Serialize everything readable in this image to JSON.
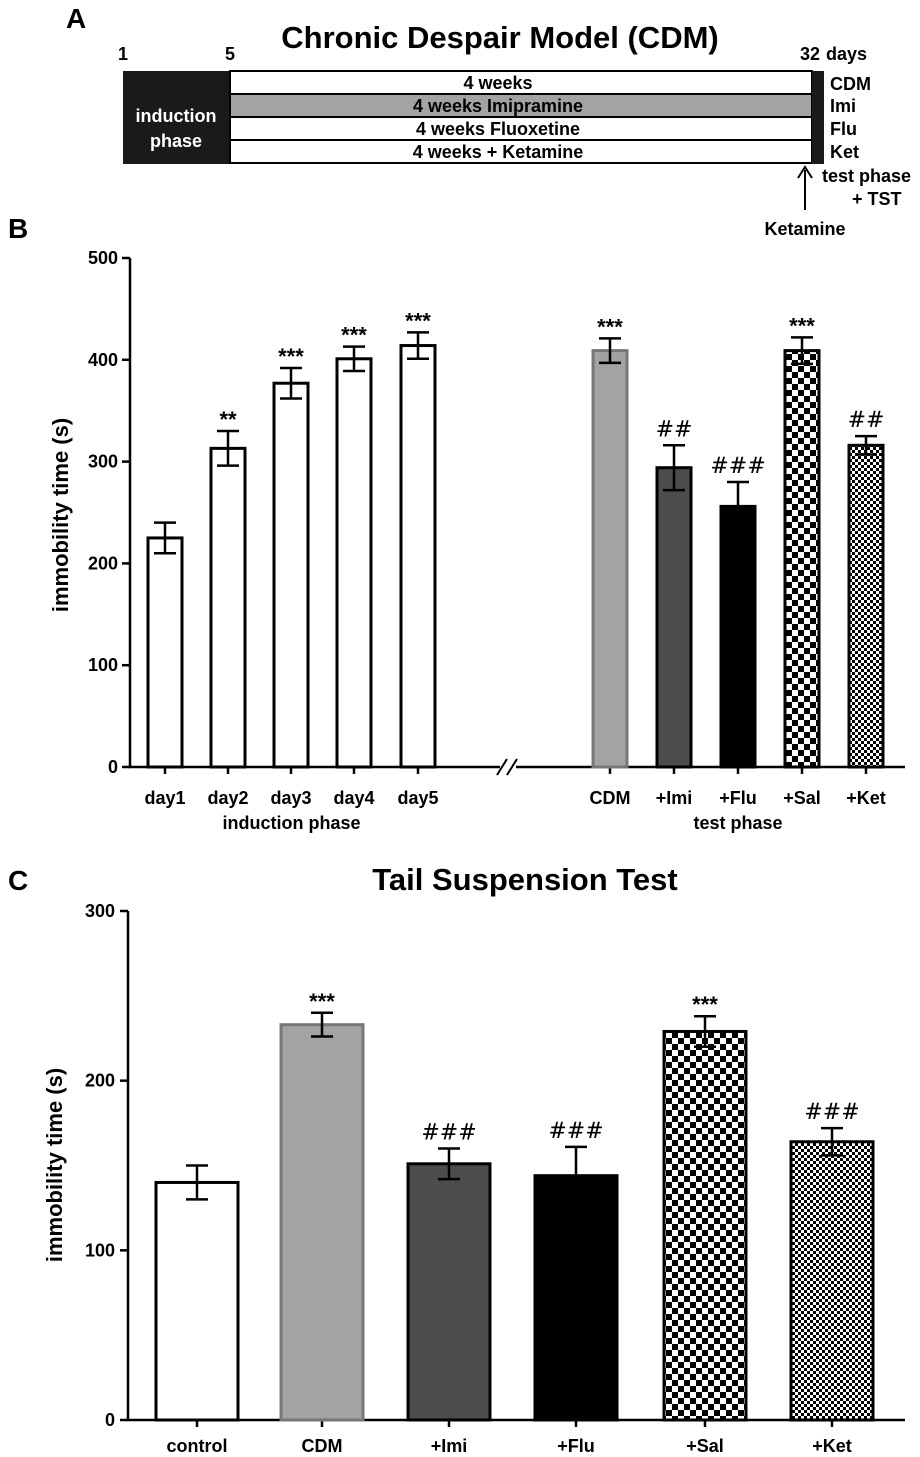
{
  "panel_a": {
    "letter": "A",
    "title": "Chronic Despair Model (CDM)",
    "day_ticks": [
      "1",
      "5",
      "32"
    ],
    "days_label": "days",
    "induction_label_line1": "induction",
    "induction_label_line2": "phase",
    "rows": [
      {
        "label": "4 weeks",
        "group": "CDM",
        "fill": "#ffffff"
      },
      {
        "label": "4 weeks Imipramine",
        "group": "Imi",
        "fill": "#a3a3a3"
      },
      {
        "label": "4 weeks Fluoxetine",
        "group": "Flu",
        "fill": "#ffffff"
      },
      {
        "label": "4 weeks + Ketamine",
        "group": "Ket",
        "fill": "#ffffff"
      }
    ],
    "test_phase_line1": "test phase",
    "test_phase_line2": "+ TST",
    "ketamine_arrow_label": "Ketamine"
  },
  "chart_data": [
    {
      "type": "bar",
      "panel": "B",
      "ylabel": "immobility time (s)",
      "ylim": [
        0,
        500
      ],
      "yticks": [
        0,
        100,
        200,
        300,
        400,
        500
      ],
      "axis_break": true,
      "groups": [
        {
          "label": "induction phase",
          "bars": [
            {
              "category": "day1",
              "value": 225,
              "error": 15,
              "sig": "",
              "fill": "white"
            },
            {
              "category": "day2",
              "value": 313,
              "error": 17,
              "sig": "**",
              "fill": "white"
            },
            {
              "category": "day3",
              "value": 377,
              "error": 15,
              "sig": "***",
              "fill": "white"
            },
            {
              "category": "day4",
              "value": 401,
              "error": 12,
              "sig": "***",
              "fill": "white"
            },
            {
              "category": "day5",
              "value": 414,
              "error": 13,
              "sig": "***",
              "fill": "white"
            }
          ]
        },
        {
          "label": "test phase",
          "bars": [
            {
              "category": "CDM",
              "value": 409,
              "error": 12,
              "sig": "***",
              "fill": "lightgray"
            },
            {
              "category": "+Imi",
              "value": 294,
              "error": 22,
              "sig": "##",
              "fill": "darkgray"
            },
            {
              "category": "+Flu",
              "value": 256,
              "error": 24,
              "sig": "###",
              "fill": "black"
            },
            {
              "category": "+Sal",
              "value": 409,
              "error": 13,
              "sig": "***",
              "fill": "checker-large"
            },
            {
              "category": "+Ket",
              "value": 316,
              "error": 9,
              "sig": "##",
              "fill": "checker-small"
            }
          ]
        }
      ]
    },
    {
      "type": "bar",
      "panel": "C",
      "title": "Tail Suspension Test",
      "ylabel": "immobility time (s)",
      "ylim": [
        0,
        300
      ],
      "yticks": [
        0,
        100,
        200,
        300
      ],
      "bars": [
        {
          "category": "control",
          "value": 140,
          "error": 10,
          "sig": "",
          "fill": "white"
        },
        {
          "category": "CDM",
          "value": 233,
          "error": 7,
          "sig": "***",
          "fill": "lightgray"
        },
        {
          "category": "+Imi",
          "value": 151,
          "error": 9,
          "sig": "###",
          "fill": "darkgray"
        },
        {
          "category": "+Flu",
          "value": 144,
          "error": 17,
          "sig": "###",
          "fill": "black"
        },
        {
          "category": "+Sal",
          "value": 229,
          "error": 9,
          "sig": "***",
          "fill": "checker-large"
        },
        {
          "category": "+Ket",
          "value": 164,
          "error": 8,
          "sig": "###",
          "fill": "checker-small"
        }
      ]
    }
  ],
  "colors": {
    "lightgray": "#a3a3a3",
    "darkgray": "#4d4d4d",
    "black": "#000000",
    "white": "#ffffff"
  }
}
